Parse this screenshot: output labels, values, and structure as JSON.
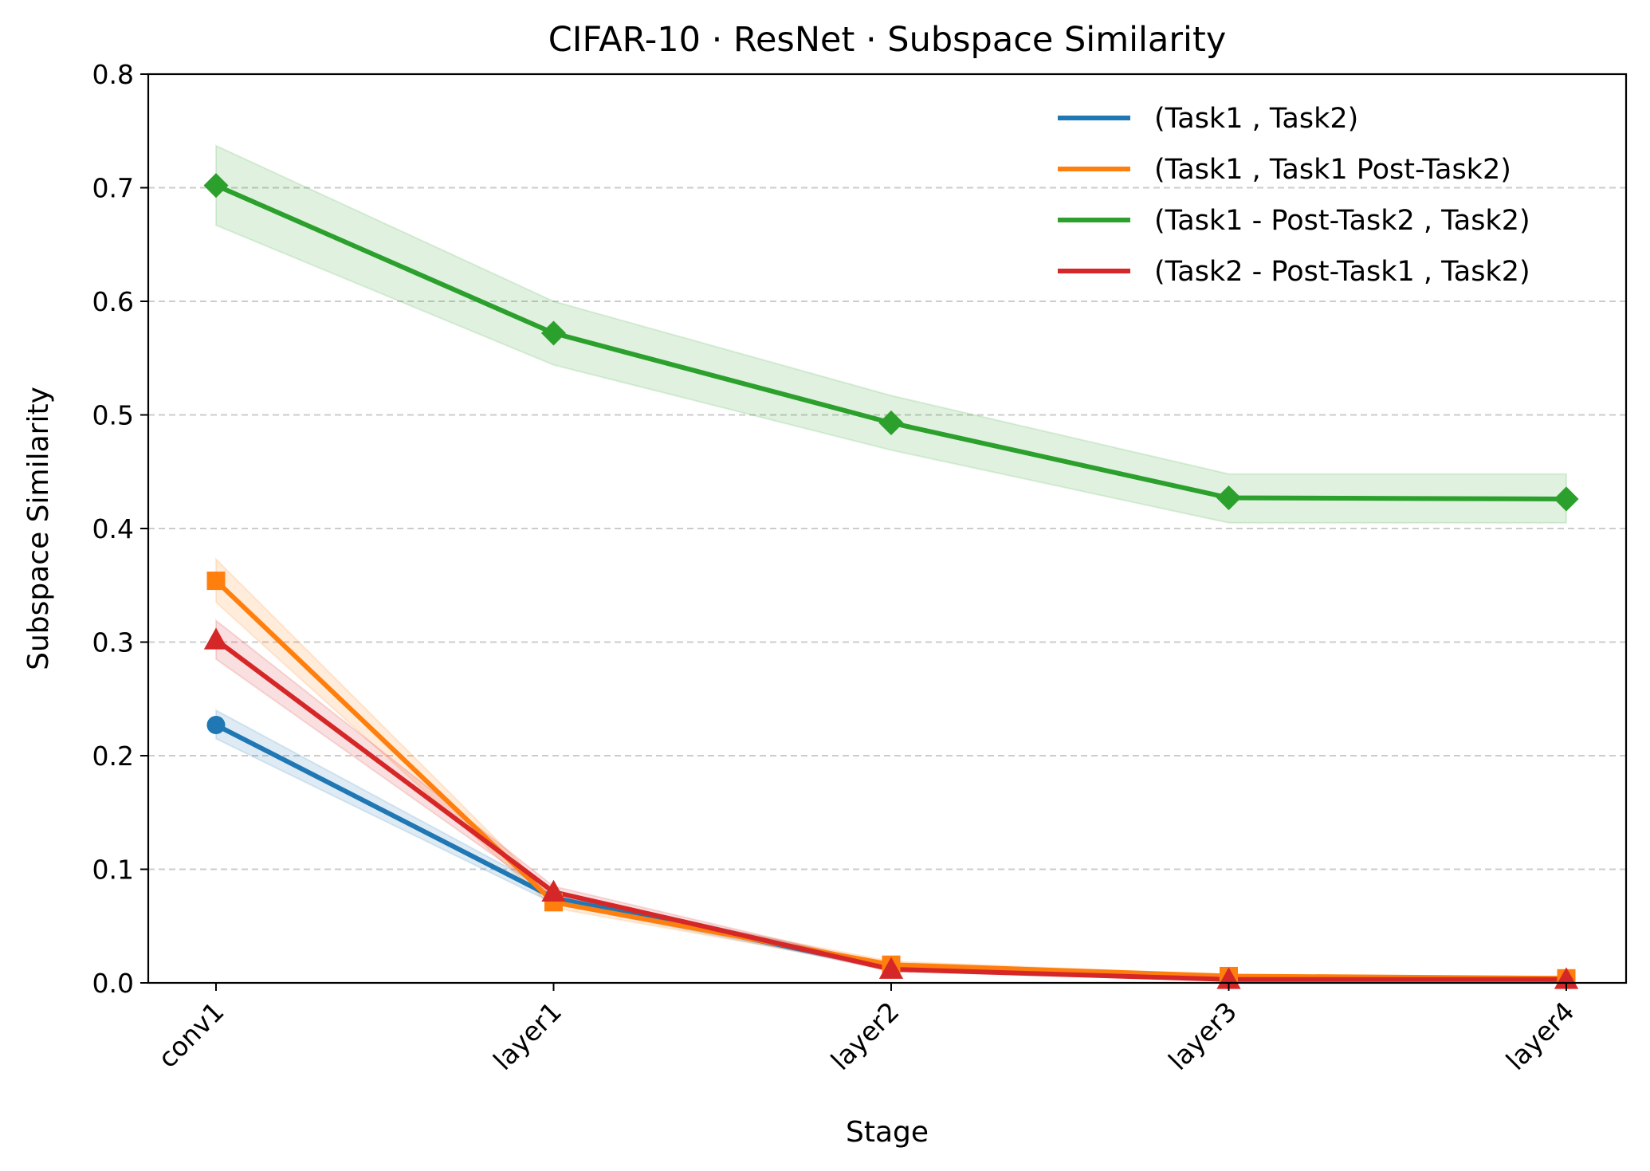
{
  "chart_data": {
    "type": "line",
    "title": "CIFAR-10 · ResNet · Subspace Similarity",
    "xlabel": "Stage",
    "ylabel": "Subspace Similarity",
    "categories": [
      "conv1",
      "layer1",
      "layer2",
      "layer3",
      "layer4"
    ],
    "ylim": [
      0.0,
      0.8
    ],
    "yticks": [
      "0.0",
      "0.1",
      "0.2",
      "0.3",
      "0.4",
      "0.5",
      "0.6",
      "0.7",
      "0.8"
    ],
    "grid": "y-dashed",
    "legend_position": "top-right",
    "series": [
      {
        "name": "(Task1 , Task2)",
        "color": "#1f77b4",
        "marker": "circle",
        "values": [
          0.227,
          0.075,
          0.013,
          0.004,
          0.003
        ],
        "lower": [
          0.215,
          0.07,
          0.011,
          0.003,
          0.002
        ],
        "upper": [
          0.24,
          0.08,
          0.016,
          0.005,
          0.004
        ]
      },
      {
        "name": "(Task1 , Task1 Post-Task2)",
        "color": "#ff7f0e",
        "marker": "square",
        "values": [
          0.354,
          0.071,
          0.016,
          0.006,
          0.004
        ],
        "lower": [
          0.335,
          0.066,
          0.013,
          0.005,
          0.003
        ],
        "upper": [
          0.373,
          0.076,
          0.019,
          0.007,
          0.005
        ]
      },
      {
        "name": "(Task1 - Post-Task2 , Task2)",
        "color": "#2ca02c",
        "marker": "diamond",
        "values": [
          0.702,
          0.572,
          0.493,
          0.427,
          0.426
        ],
        "lower": [
          0.667,
          0.544,
          0.469,
          0.405,
          0.405
        ],
        "upper": [
          0.737,
          0.6,
          0.517,
          0.448,
          0.448
        ]
      },
      {
        "name": "(Task2 - Post-Task1 , Task2)",
        "color": "#d62728",
        "marker": "triangle",
        "values": [
          0.302,
          0.08,
          0.012,
          0.003,
          0.003
        ],
        "lower": [
          0.285,
          0.075,
          0.01,
          0.002,
          0.002
        ],
        "upper": [
          0.319,
          0.085,
          0.015,
          0.004,
          0.004
        ]
      }
    ]
  }
}
